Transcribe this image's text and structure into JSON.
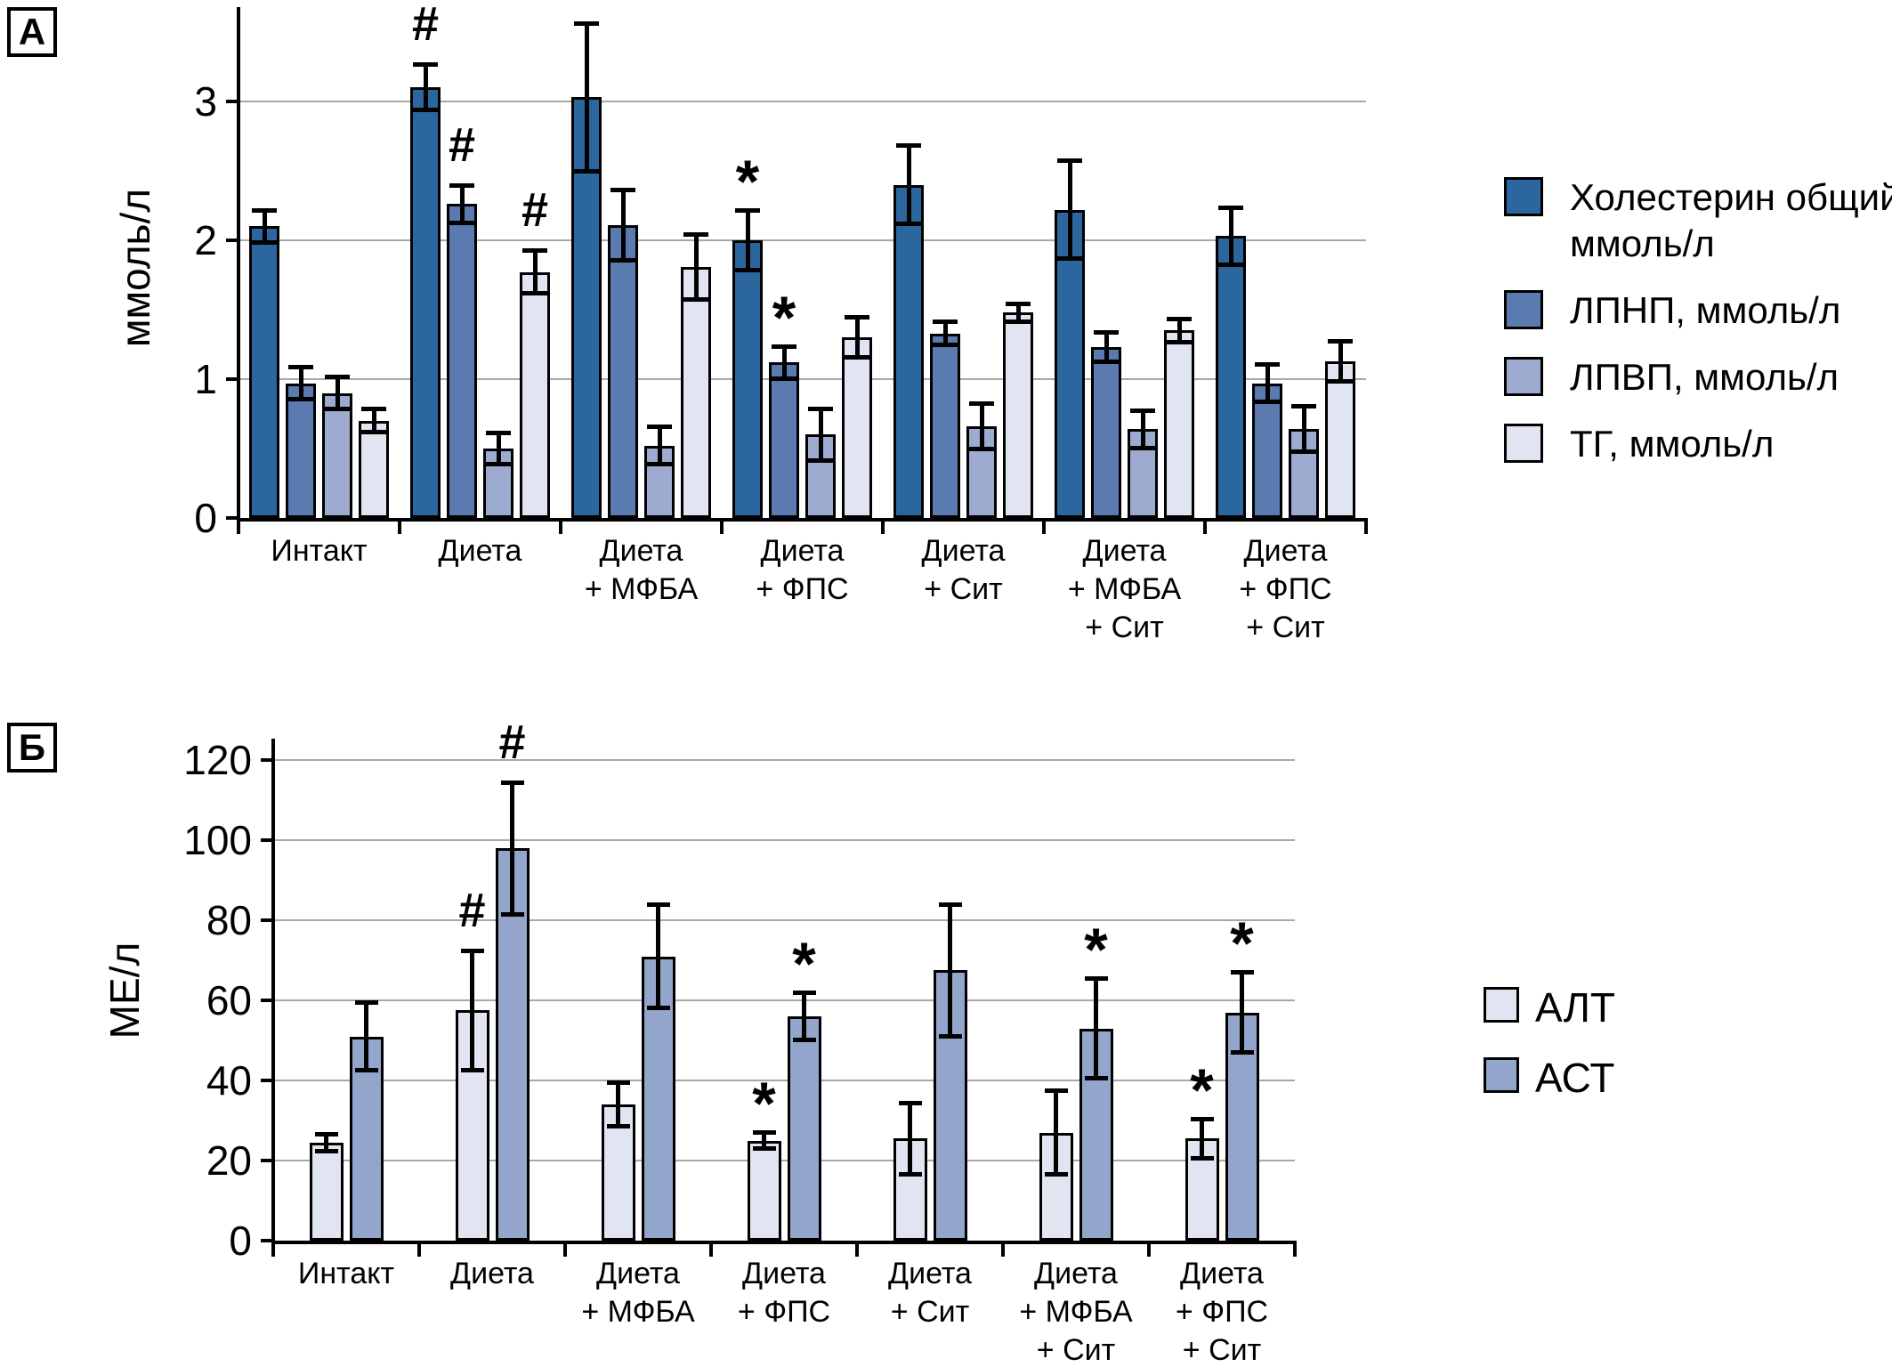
{
  "figure": {
    "background": "#ffffff",
    "panels": [
      "А",
      "Б"
    ]
  },
  "colors": {
    "axis": "#000000",
    "grid": "#a8a8a8",
    "bar_border": "#000000",
    "error_bar": "#000000",
    "series_dark_blue": "#2b679e",
    "series_medium_blue": "#5a7ab0",
    "series_light_blue": "#9dabd0",
    "series_pale_blue": "#e1e4f1",
    "series_ast_blue": "#93a5cb"
  },
  "chart_data": [
    {
      "type": "bar",
      "panel": "А",
      "ylabel": "ммоль/л",
      "xlabel": "",
      "ylim": [
        0,
        3.68
      ],
      "yticks": [
        0,
        1,
        2,
        3
      ],
      "grid": true,
      "legend_position": "right",
      "categories": [
        "Интакт",
        "Диета",
        "Диета + МФБА",
        "Диета + ФПС",
        "Диета + Сит",
        "Диета + МФБА + Сит",
        "Диета + ФПС + Сит"
      ],
      "category_lines": [
        [
          "Интакт"
        ],
        [
          "Диета"
        ],
        [
          "Диета",
          "+ МФБА"
        ],
        [
          "Диета",
          "+ ФПС"
        ],
        [
          "Диета",
          "+ Сит"
        ],
        [
          "Диета",
          "+ МФБА",
          "+ Сит"
        ],
        [
          "Диета",
          "+ ФПС",
          "+ Сит"
        ]
      ],
      "series": [
        {
          "name": "Холестерин общий, ммоль/л",
          "legend_lines": [
            "Холестерин общий,",
            "ммоль/л"
          ],
          "color": "#2b679e",
          "values": [
            2.1,
            3.1,
            3.03,
            2.0,
            2.4,
            2.22,
            2.03
          ],
          "errors": [
            0.13,
            0.18,
            0.55,
            0.23,
            0.3,
            0.37,
            0.22
          ],
          "annotations": [
            "",
            "#",
            "",
            "*",
            "",
            "",
            ""
          ]
        },
        {
          "name": "ЛПНП, ммоль/л",
          "legend_lines": [
            "ЛПНП, ммоль/л"
          ],
          "color": "#5a7ab0",
          "values": [
            0.97,
            2.26,
            2.11,
            1.12,
            1.33,
            1.23,
            0.97
          ],
          "errors": [
            0.13,
            0.15,
            0.27,
            0.13,
            0.1,
            0.12,
            0.15
          ],
          "annotations": [
            "",
            "#",
            "",
            "*",
            "",
            "",
            ""
          ]
        },
        {
          "name": "ЛПВП, ммоль/л",
          "legend_lines": [
            "ЛПВП, ммоль/л"
          ],
          "color": "#9dabd0",
          "values": [
            0.9,
            0.5,
            0.52,
            0.6,
            0.66,
            0.64,
            0.64
          ],
          "errors": [
            0.13,
            0.13,
            0.15,
            0.2,
            0.18,
            0.15,
            0.18
          ],
          "annotations": [
            "",
            "",
            "",
            "",
            "",
            "",
            ""
          ]
        },
        {
          "name": "ТГ, ммоль/л",
          "legend_lines": [
            "ТГ, ммоль/л"
          ],
          "color": "#e1e4f1",
          "values": [
            0.7,
            1.77,
            1.81,
            1.3,
            1.48,
            1.35,
            1.13
          ],
          "errors": [
            0.1,
            0.17,
            0.25,
            0.16,
            0.08,
            0.1,
            0.16
          ],
          "annotations": [
            "",
            "#",
            "",
            "",
            "",
            "",
            ""
          ]
        }
      ]
    },
    {
      "type": "bar",
      "panel": "Б",
      "ylabel": "МЕ/л",
      "xlabel": "",
      "ylim": [
        0,
        125
      ],
      "yticks": [
        0,
        20,
        40,
        60,
        80,
        100,
        120
      ],
      "grid": true,
      "legend_position": "right",
      "categories": [
        "Интакт",
        "Диета",
        "Диета + МФБА",
        "Диета + ФПС",
        "Диета + Сит",
        "Диета + МФБА + Сит",
        "Диета + ФПС + Сит"
      ],
      "category_lines": [
        [
          "Интакт"
        ],
        [
          "Диета"
        ],
        [
          "Диета",
          "+ МФБА"
        ],
        [
          "Диета",
          "+ ФПС"
        ],
        [
          "Диета",
          "+ Сит"
        ],
        [
          "Диета",
          "+ МФБА",
          "+ Сит"
        ],
        [
          "Диета",
          "+ ФПС",
          "+ Сит"
        ]
      ],
      "series": [
        {
          "name": "АЛТ",
          "legend_lines": [
            "АЛТ"
          ],
          "color": "#e1e4f1",
          "values": [
            24.5,
            57.5,
            34,
            25,
            25.5,
            27,
            25.5
          ],
          "errors": [
            2.7,
            15.5,
            6,
            2.5,
            9.5,
            11,
            5.5
          ],
          "annotations": [
            "",
            "#",
            "",
            "*",
            "",
            "",
            "*"
          ]
        },
        {
          "name": "АСТ",
          "legend_lines": [
            "АСТ"
          ],
          "color": "#93a5cb",
          "values": [
            51,
            98,
            71,
            56,
            67.5,
            53,
            57
          ],
          "errors": [
            9,
            17,
            13.5,
            6.5,
            17,
            13,
            10.5
          ],
          "annotations": [
            "",
            "#",
            "",
            "*",
            "",
            "*",
            "*"
          ]
        }
      ]
    }
  ]
}
